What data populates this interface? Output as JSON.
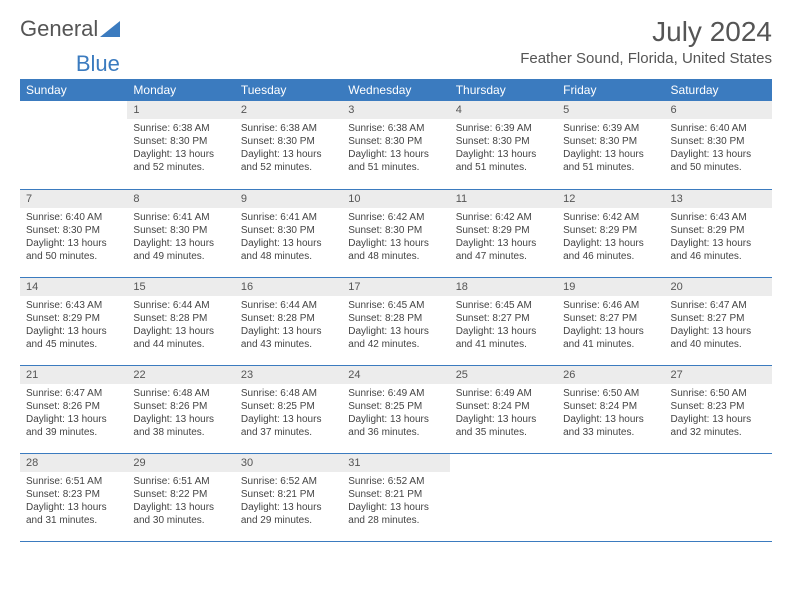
{
  "logo": {
    "text1": "General",
    "text2": "Blue"
  },
  "title": "July 2024",
  "location": "Feather Sound, Florida, United States",
  "colors": {
    "header_bg": "#3b7bbf",
    "header_text": "#ffffff",
    "daynum_bg": "#ececec",
    "border": "#3b7bbf",
    "text": "#444444",
    "logo_gray": "#555555",
    "logo_blue": "#3b7bbf",
    "page_bg": "#ffffff"
  },
  "weekdays": [
    "Sunday",
    "Monday",
    "Tuesday",
    "Wednesday",
    "Thursday",
    "Friday",
    "Saturday"
  ],
  "first_weekday_index": 1,
  "days": [
    {
      "n": 1,
      "sunrise": "6:38 AM",
      "sunset": "8:30 PM",
      "daylight": "13 hours and 52 minutes."
    },
    {
      "n": 2,
      "sunrise": "6:38 AM",
      "sunset": "8:30 PM",
      "daylight": "13 hours and 52 minutes."
    },
    {
      "n": 3,
      "sunrise": "6:38 AM",
      "sunset": "8:30 PM",
      "daylight": "13 hours and 51 minutes."
    },
    {
      "n": 4,
      "sunrise": "6:39 AM",
      "sunset": "8:30 PM",
      "daylight": "13 hours and 51 minutes."
    },
    {
      "n": 5,
      "sunrise": "6:39 AM",
      "sunset": "8:30 PM",
      "daylight": "13 hours and 51 minutes."
    },
    {
      "n": 6,
      "sunrise": "6:40 AM",
      "sunset": "8:30 PM",
      "daylight": "13 hours and 50 minutes."
    },
    {
      "n": 7,
      "sunrise": "6:40 AM",
      "sunset": "8:30 PM",
      "daylight": "13 hours and 50 minutes."
    },
    {
      "n": 8,
      "sunrise": "6:41 AM",
      "sunset": "8:30 PM",
      "daylight": "13 hours and 49 minutes."
    },
    {
      "n": 9,
      "sunrise": "6:41 AM",
      "sunset": "8:30 PM",
      "daylight": "13 hours and 48 minutes."
    },
    {
      "n": 10,
      "sunrise": "6:42 AM",
      "sunset": "8:30 PM",
      "daylight": "13 hours and 48 minutes."
    },
    {
      "n": 11,
      "sunrise": "6:42 AM",
      "sunset": "8:29 PM",
      "daylight": "13 hours and 47 minutes."
    },
    {
      "n": 12,
      "sunrise": "6:42 AM",
      "sunset": "8:29 PM",
      "daylight": "13 hours and 46 minutes."
    },
    {
      "n": 13,
      "sunrise": "6:43 AM",
      "sunset": "8:29 PM",
      "daylight": "13 hours and 46 minutes."
    },
    {
      "n": 14,
      "sunrise": "6:43 AM",
      "sunset": "8:29 PM",
      "daylight": "13 hours and 45 minutes."
    },
    {
      "n": 15,
      "sunrise": "6:44 AM",
      "sunset": "8:28 PM",
      "daylight": "13 hours and 44 minutes."
    },
    {
      "n": 16,
      "sunrise": "6:44 AM",
      "sunset": "8:28 PM",
      "daylight": "13 hours and 43 minutes."
    },
    {
      "n": 17,
      "sunrise": "6:45 AM",
      "sunset": "8:28 PM",
      "daylight": "13 hours and 42 minutes."
    },
    {
      "n": 18,
      "sunrise": "6:45 AM",
      "sunset": "8:27 PM",
      "daylight": "13 hours and 41 minutes."
    },
    {
      "n": 19,
      "sunrise": "6:46 AM",
      "sunset": "8:27 PM",
      "daylight": "13 hours and 41 minutes."
    },
    {
      "n": 20,
      "sunrise": "6:47 AM",
      "sunset": "8:27 PM",
      "daylight": "13 hours and 40 minutes."
    },
    {
      "n": 21,
      "sunrise": "6:47 AM",
      "sunset": "8:26 PM",
      "daylight": "13 hours and 39 minutes."
    },
    {
      "n": 22,
      "sunrise": "6:48 AM",
      "sunset": "8:26 PM",
      "daylight": "13 hours and 38 minutes."
    },
    {
      "n": 23,
      "sunrise": "6:48 AM",
      "sunset": "8:25 PM",
      "daylight": "13 hours and 37 minutes."
    },
    {
      "n": 24,
      "sunrise": "6:49 AM",
      "sunset": "8:25 PM",
      "daylight": "13 hours and 36 minutes."
    },
    {
      "n": 25,
      "sunrise": "6:49 AM",
      "sunset": "8:24 PM",
      "daylight": "13 hours and 35 minutes."
    },
    {
      "n": 26,
      "sunrise": "6:50 AM",
      "sunset": "8:24 PM",
      "daylight": "13 hours and 33 minutes."
    },
    {
      "n": 27,
      "sunrise": "6:50 AM",
      "sunset": "8:23 PM",
      "daylight": "13 hours and 32 minutes."
    },
    {
      "n": 28,
      "sunrise": "6:51 AM",
      "sunset": "8:23 PM",
      "daylight": "13 hours and 31 minutes."
    },
    {
      "n": 29,
      "sunrise": "6:51 AM",
      "sunset": "8:22 PM",
      "daylight": "13 hours and 30 minutes."
    },
    {
      "n": 30,
      "sunrise": "6:52 AM",
      "sunset": "8:21 PM",
      "daylight": "13 hours and 29 minutes."
    },
    {
      "n": 31,
      "sunrise": "6:52 AM",
      "sunset": "8:21 PM",
      "daylight": "13 hours and 28 minutes."
    }
  ],
  "labels": {
    "sunrise": "Sunrise:",
    "sunset": "Sunset:",
    "daylight": "Daylight:"
  }
}
